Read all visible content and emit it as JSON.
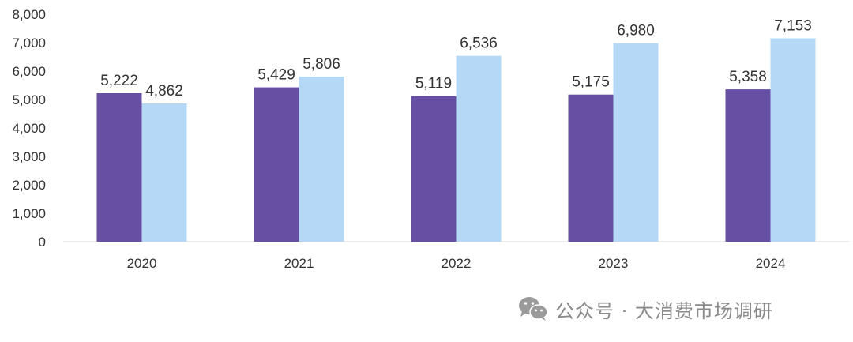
{
  "chart_data": {
    "type": "bar",
    "categories": [
      "2020",
      "2021",
      "2022",
      "2023",
      "2024"
    ],
    "series": [
      {
        "values": [
          5222,
          5429,
          5119,
          5175,
          5358
        ],
        "color": "#6750a4"
      },
      {
        "values": [
          4862,
          5806,
          6536,
          6980,
          7153
        ],
        "color": "#b4d8f5"
      }
    ],
    "data_labels": [
      [
        "5,222",
        "5,429",
        "5,119",
        "5,175",
        "5,358"
      ],
      [
        "4,862",
        "5,806",
        "6,536",
        "6,980",
        "7,153"
      ]
    ],
    "y_ticks": [
      "0",
      "1,000",
      "2,000",
      "3,000",
      "4,000",
      "5,000",
      "6,000",
      "7,000",
      "8,000"
    ],
    "ylim": [
      0,
      8000
    ],
    "grid": false,
    "legend": "none"
  },
  "watermark": {
    "icon": "wechat-icon",
    "text": "公众号 · 大消费市场调研"
  }
}
